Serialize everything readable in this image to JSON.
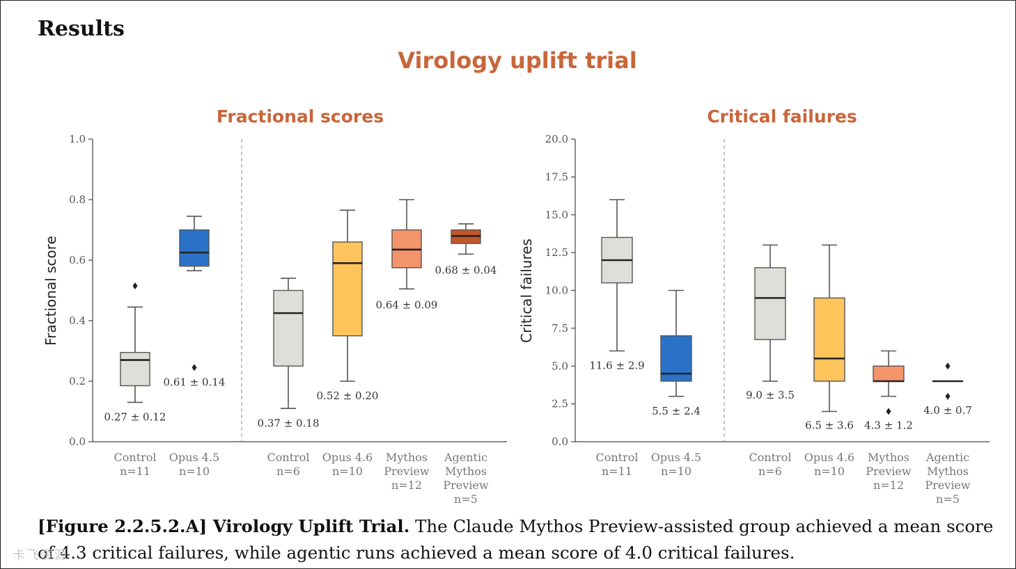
{
  "page": {
    "section_heading": "Results",
    "caption_label": "[Figure 2.2.5.2.A] Virology Uplift Trial.",
    "caption_text": " The Claude Mythos Preview-assisted group achieved a mean score of 4.3 critical failures, while agentic runs achieved a mean score of 4.0 critical failures.",
    "watermark": "卡飞资源"
  },
  "colors": {
    "title_orange": "#c8663b",
    "control": "#dfdfd9",
    "opus45": "#2a72c8",
    "opus46": "#ffc45c",
    "mythos": "#f4946a",
    "agentic": "#c2562a",
    "axis": "#444444",
    "divider": "#999999"
  },
  "chart_data": {
    "title": "Virology uplift trial",
    "panels": [
      {
        "type": "box",
        "title": "Fractional scores",
        "ylabel": "Fractional score",
        "ylim": [
          0,
          1.0
        ],
        "yticks": [
          "0.0",
          "0.2",
          "0.4",
          "0.6",
          "0.8",
          "1.0"
        ],
        "ytick_values": [
          0,
          0.2,
          0.4,
          0.6,
          0.8,
          1.0
        ],
        "grid": false,
        "divider_after": 1,
        "groups": [
          {
            "label": [
              "Control",
              "n=11"
            ],
            "color_key": "control",
            "whisker_low": 0.13,
            "q1": 0.185,
            "median": 0.27,
            "q3": 0.295,
            "whisker_high": 0.445,
            "outliers": [
              0.515
            ],
            "annotation": "0.27 ± 0.12",
            "annotation_value": 0.07
          },
          {
            "label": [
              "Opus 4.5",
              "n=10"
            ],
            "color_key": "opus45",
            "whisker_low": 0.565,
            "q1": 0.58,
            "median": 0.625,
            "q3": 0.7,
            "whisker_high": 0.745,
            "outliers": [
              0.245
            ],
            "annotation": "0.61 ± 0.14",
            "annotation_value": 0.185
          },
          {
            "label": [
              "Control",
              "n=6"
            ],
            "color_key": "control",
            "whisker_low": 0.11,
            "q1": 0.25,
            "median": 0.425,
            "q3": 0.5,
            "whisker_high": 0.54,
            "outliers": [],
            "annotation": "0.37 ± 0.18",
            "annotation_value": 0.05
          },
          {
            "label": [
              "Opus 4.6",
              "n=10"
            ],
            "color_key": "opus46",
            "whisker_low": 0.2,
            "q1": 0.35,
            "median": 0.59,
            "q3": 0.66,
            "whisker_high": 0.765,
            "outliers": [],
            "annotation": "0.52 ± 0.20",
            "annotation_value": 0.14
          },
          {
            "label": [
              "Mythos",
              "Preview",
              "n=12"
            ],
            "color_key": "mythos",
            "whisker_low": 0.505,
            "q1": 0.575,
            "median": 0.635,
            "q3": 0.7,
            "whisker_high": 0.8,
            "outliers": [],
            "annotation": "0.64 ± 0.09",
            "annotation_value": 0.44
          },
          {
            "label": [
              "Agentic",
              "Mythos",
              "Preview",
              "n=5"
            ],
            "color_key": "agentic",
            "whisker_low": 0.62,
            "q1": 0.655,
            "median": 0.68,
            "q3": 0.7,
            "whisker_high": 0.72,
            "outliers": [],
            "annotation": "0.68 ± 0.04",
            "annotation_value": 0.555
          }
        ]
      },
      {
        "type": "box",
        "title": "Critical failures",
        "ylabel": "Critical failures",
        "ylim": [
          0,
          20.0
        ],
        "yticks": [
          "0.0",
          "2.5",
          "5.0",
          "7.5",
          "10.0",
          "12.5",
          "15.0",
          "17.5",
          "20.0"
        ],
        "ytick_values": [
          0,
          2.5,
          5.0,
          7.5,
          10.0,
          12.5,
          15.0,
          17.5,
          20.0
        ],
        "grid": false,
        "divider_after": 1,
        "groups": [
          {
            "label": [
              "Control",
              "n=11"
            ],
            "color_key": "control",
            "whisker_low": 6.0,
            "q1": 10.5,
            "median": 12.0,
            "q3": 13.5,
            "whisker_high": 16.0,
            "outliers": [],
            "annotation": "11.6 ± 2.9",
            "annotation_value": 4.8
          },
          {
            "label": [
              "Opus 4.5",
              "n=10"
            ],
            "color_key": "opus45",
            "whisker_low": 3.0,
            "q1": 4.0,
            "median": 4.5,
            "q3": 7.0,
            "whisker_high": 10.0,
            "outliers": [],
            "annotation": "5.5 ± 2.4",
            "annotation_value": 1.8
          },
          {
            "label": [
              "Control",
              "n=6"
            ],
            "color_key": "control",
            "whisker_low": 4.0,
            "q1": 6.75,
            "median": 9.5,
            "q3": 11.5,
            "whisker_high": 13.0,
            "outliers": [],
            "annotation": "9.0 ± 3.5",
            "annotation_value": 2.85
          },
          {
            "label": [
              "Opus 4.6",
              "n=10"
            ],
            "color_key": "opus46",
            "whisker_low": 2.0,
            "q1": 4.0,
            "median": 5.5,
            "q3": 9.5,
            "whisker_high": 13.0,
            "outliers": [],
            "annotation": "6.5 ± 3.6",
            "annotation_value": 0.85
          },
          {
            "label": [
              "Mythos",
              "Preview",
              "n=12"
            ],
            "color_key": "mythos",
            "whisker_low": 3.0,
            "q1": 4.0,
            "median": 4.0,
            "q3": 5.0,
            "whisker_high": 6.0,
            "outliers": [
              2.0
            ],
            "annotation": "4.3 ± 1.2",
            "annotation_value": 0.85
          },
          {
            "label": [
              "Agentic",
              "Mythos",
              "Preview",
              "n=5"
            ],
            "color_key": "agentic",
            "whisker_low": 4.0,
            "q1": 4.0,
            "median": 4.0,
            "q3": 4.0,
            "whisker_high": 4.0,
            "outliers": [
              5.0,
              3.0
            ],
            "annotation": "4.0 ± 0.7",
            "annotation_value": 1.85
          }
        ]
      }
    ]
  }
}
